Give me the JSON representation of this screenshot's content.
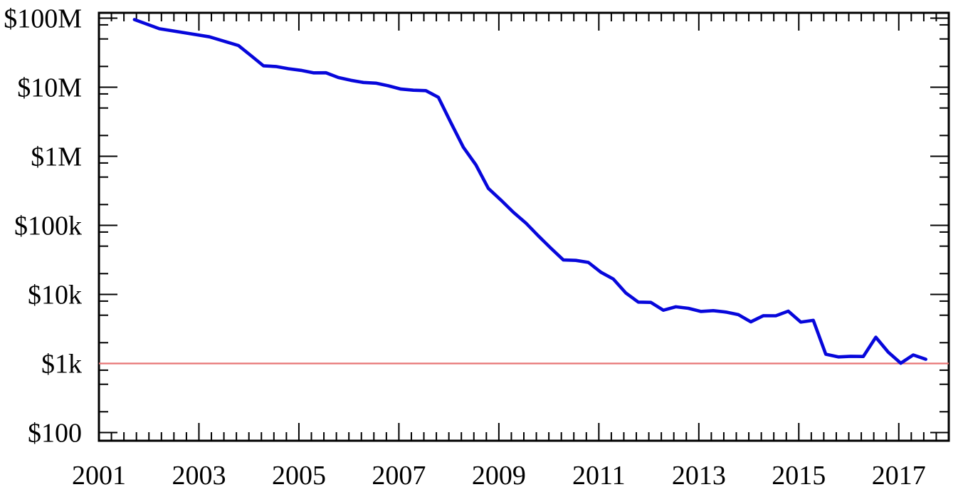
{
  "chart_data": {
    "type": "line",
    "title": "",
    "legend": false,
    "grid": false,
    "background_color": "#ffffff",
    "frame_color": "#000000",
    "x_axis": {
      "label": "",
      "range": [
        2001,
        2018
      ],
      "major_ticks": [
        2001,
        2003,
        2005,
        2007,
        2009,
        2011,
        2013,
        2015,
        2017
      ],
      "tick_labels": [
        "2001",
        "2003",
        "2005",
        "2007",
        "2009",
        "2011",
        "2013",
        "2015",
        "2017"
      ],
      "minor_tick_interval_years": 0.25
    },
    "y_axis": {
      "label": "",
      "scale": "log10",
      "unit": "USD",
      "range": [
        80,
        120000000
      ],
      "major_ticks": [
        {
          "value": 100000000,
          "label": "$100M"
        },
        {
          "value": 10000000,
          "label": "$10M"
        },
        {
          "value": 1000000,
          "label": "$1M"
        },
        {
          "value": 100000,
          "label": "$100k"
        },
        {
          "value": 10000,
          "label": "$10k"
        },
        {
          "value": 1000,
          "label": "$1k"
        },
        {
          "value": 100,
          "label": "$100"
        }
      ],
      "minor_tick_multiples": [
        2,
        5,
        8
      ]
    },
    "reference_line": {
      "orientation": "horizontal",
      "value": 1000,
      "label_at_axis": "$1k",
      "color": "#e87575"
    },
    "series": [
      {
        "color": "#0707db",
        "points": [
          [
            2001.71,
            95263072
          ],
          [
            2002.21,
            70175437
          ],
          [
            2002.71,
            61448422
          ],
          [
            2003.21,
            53751684
          ],
          [
            2003.79,
            40157554
          ],
          [
            2004.04,
            28780376
          ],
          [
            2004.29,
            20442576
          ],
          [
            2004.54,
            19934346
          ],
          [
            2004.79,
            18519312
          ],
          [
            2005.04,
            17534970
          ],
          [
            2005.29,
            16159699
          ],
          [
            2005.54,
            16180224
          ],
          [
            2005.79,
            13801124
          ],
          [
            2006.04,
            12585659
          ],
          [
            2006.29,
            11732535
          ],
          [
            2006.54,
            11455315
          ],
          [
            2006.79,
            10474556
          ],
          [
            2007.04,
            9408739
          ],
          [
            2007.29,
            9047003
          ],
          [
            2007.54,
            8927342
          ],
          [
            2007.79,
            7147571
          ],
          [
            2008.04,
            3063820
          ],
          [
            2008.29,
            1352982
          ],
          [
            2008.54,
            752080
          ],
          [
            2008.79,
            342502
          ],
          [
            2009.04,
            232735
          ],
          [
            2009.29,
            154714
          ],
          [
            2009.54,
            108065
          ],
          [
            2009.79,
            70333
          ],
          [
            2010.04,
            46774
          ],
          [
            2010.29,
            31512
          ],
          [
            2010.54,
            31125
          ],
          [
            2010.79,
            29092
          ],
          [
            2011.04,
            20963
          ],
          [
            2011.29,
            16712
          ],
          [
            2011.54,
            10497
          ],
          [
            2011.79,
            7743
          ],
          [
            2012.04,
            7666
          ],
          [
            2012.29,
            5901
          ],
          [
            2012.54,
            6618
          ],
          [
            2012.79,
            6300
          ],
          [
            2013.04,
            5671
          ],
          [
            2013.29,
            5826
          ],
          [
            2013.54,
            5550
          ],
          [
            2013.79,
            5096
          ],
          [
            2014.04,
            4008
          ],
          [
            2014.29,
            4920
          ],
          [
            2014.54,
            4905
          ],
          [
            2014.79,
            5731
          ],
          [
            2015.04,
            3970
          ],
          [
            2015.29,
            4211
          ],
          [
            2015.54,
            1363
          ],
          [
            2015.79,
            1245
          ],
          [
            2016.04,
            1271
          ],
          [
            2016.29,
            1263
          ],
          [
            2016.54,
            2400
          ],
          [
            2016.79,
            1460
          ],
          [
            2017.04,
            1010
          ],
          [
            2017.29,
            1330
          ],
          [
            2017.54,
            1150
          ]
        ]
      }
    ]
  }
}
